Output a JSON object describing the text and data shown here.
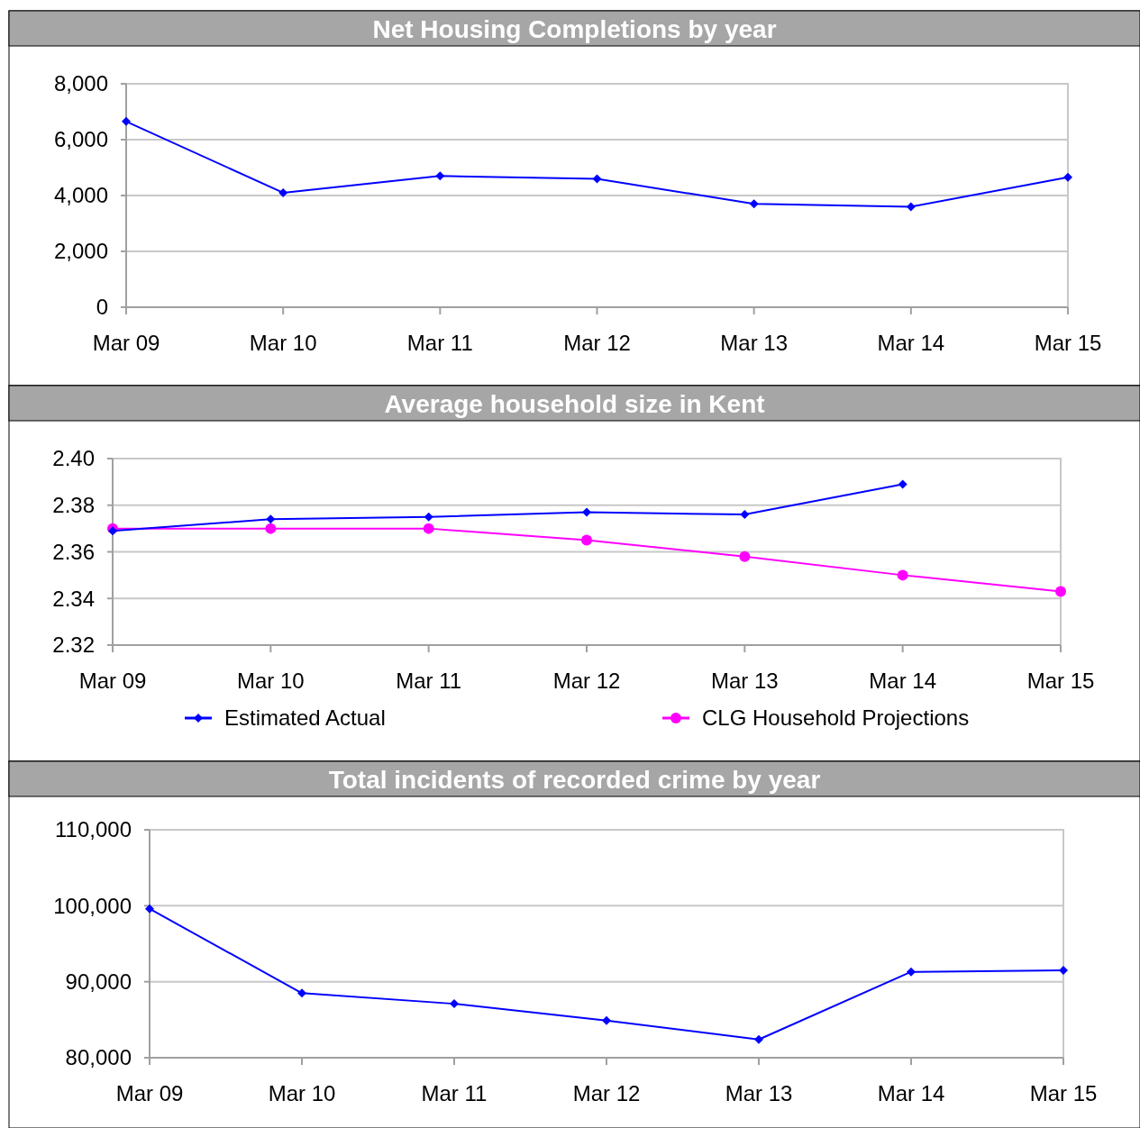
{
  "chart_data": [
    {
      "type": "line",
      "title": "Net Housing Completions by year",
      "categories": [
        "Mar 09",
        "Mar 10",
        "Mar 11",
        "Mar 12",
        "Mar 13",
        "Mar 14",
        "Mar 15"
      ],
      "series": [
        {
          "color": "#0000ff",
          "marker": "diamond",
          "values": [
            6650,
            4100,
            4700,
            4600,
            3700,
            3600,
            4650
          ]
        }
      ],
      "ylim": [
        0,
        8000
      ],
      "yticks": [
        {
          "value": 0,
          "label": "0"
        },
        {
          "value": 2000,
          "label": "2,000"
        },
        {
          "value": 4000,
          "label": "4,000"
        },
        {
          "value": 6000,
          "label": "6,000"
        },
        {
          "value": 8000,
          "label": "8,000"
        }
      ],
      "grid": "y",
      "legend": false
    },
    {
      "type": "line",
      "title": "Average household size in Kent",
      "categories": [
        "Mar 09",
        "Mar 10",
        "Mar 11",
        "Mar 12",
        "Mar 13",
        "Mar 14",
        "Mar 15"
      ],
      "series": [
        {
          "name": "Estimated Actual",
          "color": "#0000ff",
          "marker": "diamond",
          "values": [
            2.369,
            2.374,
            2.375,
            2.377,
            2.376,
            2.389,
            null
          ]
        },
        {
          "name": "CLG Household Projections",
          "color": "#ff00ff",
          "marker": "circle",
          "values": [
            2.37,
            2.37,
            2.37,
            2.365,
            2.358,
            2.35,
            2.343
          ]
        }
      ],
      "ylim": [
        2.32,
        2.4
      ],
      "yticks": [
        {
          "value": 2.32,
          "label": "2.32"
        },
        {
          "value": 2.34,
          "label": "2.34"
        },
        {
          "value": 2.36,
          "label": "2.36"
        },
        {
          "value": 2.38,
          "label": "2.38"
        },
        {
          "value": 2.4,
          "label": "2.40"
        }
      ],
      "grid": "y",
      "legend": "bottom"
    },
    {
      "type": "line",
      "title": "Total incidents of recorded crime by year",
      "categories": [
        "Mar 09",
        "Mar 10",
        "Mar 11",
        "Mar 12",
        "Mar 13",
        "Mar 14",
        "Mar 15"
      ],
      "series": [
        {
          "color": "#0000ff",
          "marker": "diamond",
          "values": [
            99600,
            88500,
            87100,
            84900,
            82400,
            91300,
            91500
          ]
        }
      ],
      "ylim": [
        80000,
        110000
      ],
      "yticks": [
        {
          "value": 80000,
          "label": "80,000"
        },
        {
          "value": 90000,
          "label": "90,000"
        },
        {
          "value": 100000,
          "label": "100,000"
        },
        {
          "value": 110000,
          "label": "110,000"
        }
      ],
      "grid": "y",
      "legend": false
    }
  ]
}
